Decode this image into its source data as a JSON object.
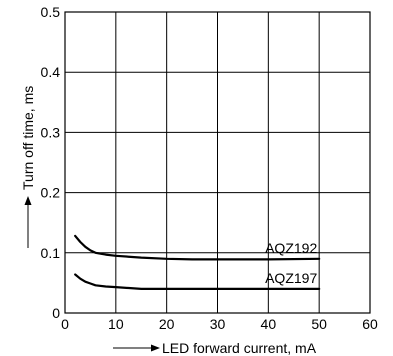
{
  "chart_data": {
    "type": "line",
    "title": "",
    "xlabel": "LED forward current, mA",
    "ylabel": "Turn off time, ms",
    "xlim": [
      0,
      60
    ],
    "ylim": [
      0,
      0.5
    ],
    "xticks": [
      0,
      10,
      20,
      30,
      40,
      50,
      60
    ],
    "yticks": [
      0,
      0.1,
      0.2,
      0.3,
      0.4,
      0.5
    ],
    "xtick_labels": [
      "0",
      "10",
      "20",
      "30",
      "40",
      "50",
      "60"
    ],
    "ytick_labels": [
      "0",
      "0.1",
      "0.2",
      "0.3",
      "0.4",
      "0.5"
    ],
    "grid": true,
    "legend": "inline labels",
    "series": [
      {
        "name": "AQZ192",
        "x": [
          2,
          3,
          4,
          5,
          6,
          8,
          10,
          15,
          20,
          25,
          30,
          40,
          50
        ],
        "y": [
          0.128,
          0.118,
          0.11,
          0.104,
          0.1,
          0.097,
          0.095,
          0.092,
          0.09,
          0.089,
          0.089,
          0.089,
          0.09
        ]
      },
      {
        "name": "AQZ197",
        "x": [
          2,
          3,
          4,
          5,
          6,
          8,
          10,
          15,
          20,
          30,
          40,
          50
        ],
        "y": [
          0.064,
          0.057,
          0.052,
          0.049,
          0.046,
          0.044,
          0.043,
          0.04,
          0.04,
          0.04,
          0.04,
          0.04
        ]
      }
    ]
  }
}
